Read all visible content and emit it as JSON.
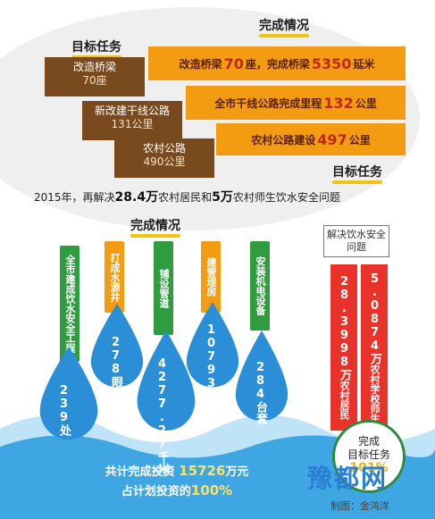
{
  "goals_header": "目标任务",
  "done_header": "完成情况",
  "goals": [
    {
      "label": "改造桥梁",
      "value": "70座"
    },
    {
      "label": "新改建干线公路",
      "value": "131公里"
    },
    {
      "label": "农村公路",
      "value": "490公里"
    }
  ],
  "results": [
    {
      "pre": "改造桥梁",
      "num1": "70",
      "mid": "座，完成桥梁",
      "num2": "5350",
      "post": "延米"
    },
    {
      "pre": "全市干线公路完成里程",
      "num1": "132",
      "mid": "公里",
      "num2": "",
      "post": ""
    },
    {
      "pre": "农村公路建设",
      "num1": "497",
      "mid": "公里",
      "num2": "",
      "post": ""
    }
  ],
  "water_goal_header": "目标任务",
  "water_summary": {
    "p1": "2015年，再解决",
    "n1": "28.4万",
    "p2": "农村居民和",
    "n2": "5万",
    "p3": "农村师生饮水安全问题"
  },
  "water_done_header": "完成情况",
  "categories": [
    {
      "label": "全市建成饮水安全工程",
      "value": "239处",
      "color": "#2f9c3f"
    },
    {
      "label": "打成水源井",
      "value": "278眼",
      "color": "#f39c12"
    },
    {
      "label": "铺设管道",
      "value": "4277.27千米",
      "color": "#2f9c3f"
    },
    {
      "label": "建管理房",
      "value": "10793平方米",
      "color": "#f39c12"
    },
    {
      "label": "安装机电设备",
      "value": "284台套",
      "color": "#2f9c3f"
    }
  ],
  "side_label": "解决饮水安全问题",
  "red_bars": [
    {
      "num": "28.3998万",
      "label": "农村居民"
    },
    {
      "num": "5.0874万",
      "label": "农村学校师生"
    }
  ],
  "invest": {
    "p1": "共计完成投资",
    "n1": "15726",
    "u1": "万元",
    "p2": "占计划投资的",
    "n2": "100%"
  },
  "circle": {
    "l1": "完成",
    "l2": "目标任务",
    "pct": "101%"
  },
  "logo": "豫都网",
  "credit": "制图：金鸿洋",
  "colors": {
    "brown": "#7a4a1f",
    "orange": "#f39c12",
    "green": "#2f9c3f",
    "blue": "#2a8fd6",
    "red": "#e8322a",
    "yellow": "#f1c40f"
  }
}
